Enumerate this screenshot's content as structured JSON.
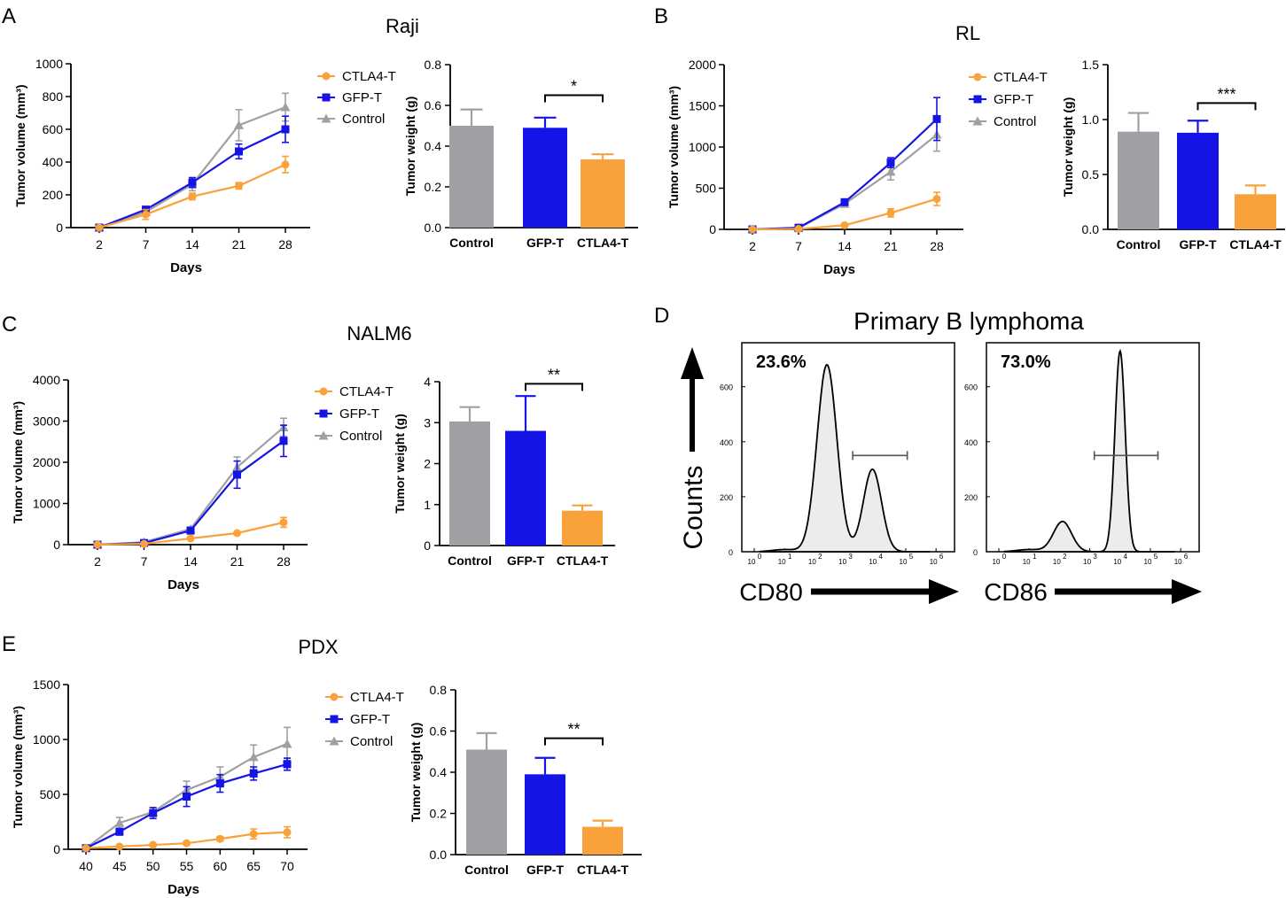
{
  "colors": {
    "ctla4": "#f9a13b",
    "gfp": "#1414e6",
    "control": "#a0a0a4",
    "hist_fill": "#ececec"
  },
  "panels": {
    "a": "A",
    "b": "B",
    "c": "C",
    "d": "D",
    "e": "E"
  },
  "chart_data": [
    {
      "id": "A-line",
      "type": "line",
      "title": "Raji",
      "xlabel": "Days",
      "ylabel": "Tumor volume (mm³)",
      "categories": [
        "2",
        "7",
        "14",
        "21",
        "28"
      ],
      "ylim": [
        0,
        1000
      ],
      "yticks": [
        0,
        200,
        400,
        600,
        800,
        1000
      ],
      "series": [
        {
          "name": "CTLA4-T",
          "color": "ctla4",
          "marker": "circle",
          "values": [
            0,
            80,
            190,
            255,
            385
          ],
          "errors": [
            0,
            30,
            20,
            20,
            50
          ]
        },
        {
          "name": "GFP-T",
          "color": "gfp",
          "marker": "square",
          "values": [
            0,
            110,
            275,
            465,
            600
          ],
          "errors": [
            0,
            10,
            30,
            45,
            80
          ]
        },
        {
          "name": "Control",
          "color": "control",
          "marker": "triangle",
          "values": [
            0,
            95,
            265,
            625,
            735
          ],
          "errors": [
            0,
            20,
            40,
            95,
            85
          ]
        }
      ]
    },
    {
      "id": "A-bar",
      "type": "bar",
      "ylabel": "Tumor weight (g)",
      "categories": [
        "Control",
        "GFP-T",
        "CTLA4-T"
      ],
      "values": [
        0.5,
        0.49,
        0.335
      ],
      "errors": [
        0.08,
        0.05,
        0.025
      ],
      "colors": [
        "control",
        "gfp",
        "ctla4"
      ],
      "ylim": [
        0,
        0.8
      ],
      "yticks": [
        "0.0",
        "0.2",
        "0.4",
        "0.6",
        "0.8"
      ],
      "sig": {
        "label": "*",
        "from": 1,
        "to": 2,
        "y": 0.65
      }
    },
    {
      "id": "B-line",
      "type": "line",
      "title": "RL",
      "xlabel": "Days",
      "ylabel": "Tumor volume (mm³)",
      "categories": [
        "2",
        "7",
        "14",
        "21",
        "28"
      ],
      "ylim": [
        0,
        2000
      ],
      "yticks": [
        0,
        500,
        1000,
        1500,
        2000
      ],
      "series": [
        {
          "name": "CTLA4-T",
          "color": "ctla4",
          "marker": "circle",
          "values": [
            0,
            5,
            50,
            200,
            370
          ],
          "errors": [
            0,
            5,
            10,
            50,
            80
          ]
        },
        {
          "name": "GFP-T",
          "color": "gfp",
          "marker": "square",
          "values": [
            0,
            20,
            330,
            810,
            1340
          ],
          "errors": [
            0,
            10,
            30,
            60,
            260
          ]
        },
        {
          "name": "Control",
          "color": "control",
          "marker": "triangle",
          "values": [
            0,
            15,
            310,
            700,
            1150
          ],
          "errors": [
            0,
            10,
            40,
            100,
            200
          ]
        }
      ]
    },
    {
      "id": "B-bar",
      "type": "bar",
      "ylabel": "Tumor weight (g)",
      "categories": [
        "Control",
        "GFP-T",
        "CTLA4-T"
      ],
      "values": [
        0.89,
        0.88,
        0.32
      ],
      "errors": [
        0.17,
        0.11,
        0.08
      ],
      "colors": [
        "control",
        "gfp",
        "ctla4"
      ],
      "ylim": [
        0,
        1.5
      ],
      "yticks": [
        "0.0",
        "0.5",
        "1.0",
        "1.5"
      ],
      "sig": {
        "label": "***",
        "from": 1,
        "to": 2,
        "y": 1.15
      }
    },
    {
      "id": "C-line",
      "type": "line",
      "title": "NALM6",
      "xlabel": "Days",
      "ylabel": "Tumor volume (mm³)",
      "categories": [
        "2",
        "7",
        "14",
        "21",
        "28"
      ],
      "ylim": [
        0,
        4000
      ],
      "yticks": [
        0,
        1000,
        2000,
        3000,
        4000
      ],
      "series": [
        {
          "name": "CTLA4-T",
          "color": "ctla4",
          "marker": "circle",
          "values": [
            0,
            20,
            150,
            280,
            540
          ],
          "errors": [
            0,
            10,
            20,
            30,
            120
          ]
        },
        {
          "name": "GFP-T",
          "color": "gfp",
          "marker": "square",
          "values": [
            0,
            40,
            340,
            1700,
            2520
          ],
          "errors": [
            0,
            20,
            40,
            330,
            380
          ]
        },
        {
          "name": "Control",
          "color": "control",
          "marker": "triangle",
          "values": [
            0,
            60,
            380,
            1880,
            2850
          ],
          "errors": [
            0,
            20,
            50,
            250,
            220
          ]
        }
      ]
    },
    {
      "id": "C-bar",
      "type": "bar",
      "ylabel": "Tumor weight (g)",
      "categories": [
        "Control",
        "GFP-T",
        "CTLA4-T"
      ],
      "values": [
        3.03,
        2.8,
        0.85
      ],
      "errors": [
        0.35,
        0.85,
        0.13
      ],
      "colors": [
        "control",
        "gfp",
        "ctla4"
      ],
      "ylim": [
        0,
        4
      ],
      "yticks": [
        "0",
        "1",
        "2",
        "3",
        "4"
      ],
      "sig": {
        "label": "**",
        "from": 1,
        "to": 2,
        "y": 3.95
      }
    },
    {
      "id": "E-line",
      "type": "line",
      "title": "PDX",
      "xlabel": "Days",
      "ylabel": "Tumor volume (mm³)",
      "categories": [
        "40",
        "45",
        "50",
        "55",
        "60",
        "65",
        "70"
      ],
      "ylim": [
        0,
        1500
      ],
      "yticks": [
        0,
        500,
        1000,
        1500
      ],
      "series": [
        {
          "name": "CTLA4-T",
          "color": "ctla4",
          "marker": "circle",
          "values": [
            10,
            25,
            40,
            55,
            95,
            140,
            155
          ],
          "errors": [
            5,
            10,
            15,
            15,
            20,
            45,
            50
          ]
        },
        {
          "name": "GFP-T",
          "color": "gfp",
          "marker": "square",
          "values": [
            10,
            160,
            330,
            480,
            600,
            690,
            775
          ],
          "errors": [
            5,
            30,
            50,
            90,
            80,
            60,
            55
          ]
        },
        {
          "name": "Control",
          "color": "control",
          "marker": "triangle",
          "values": [
            10,
            240,
            340,
            540,
            660,
            840,
            960
          ],
          "errors": [
            5,
            50,
            40,
            80,
            90,
            110,
            150
          ]
        }
      ]
    },
    {
      "id": "E-bar",
      "type": "bar",
      "ylabel": "Tumor weight (g)",
      "categories": [
        "Control",
        "GFP-T",
        "CTLA4-T"
      ],
      "values": [
        0.51,
        0.39,
        0.135
      ],
      "errors": [
        0.08,
        0.08,
        0.03
      ],
      "colors": [
        "control",
        "gfp",
        "ctla4"
      ],
      "ylim": [
        0,
        0.8
      ],
      "yticks": [
        "0.0",
        "0.2",
        "0.4",
        "0.6",
        "0.8"
      ],
      "sig": {
        "label": "**",
        "from": 1,
        "to": 2,
        "y": 0.565
      }
    }
  ],
  "flow": {
    "title": "Primary B lymphoma",
    "ylabel": "Counts",
    "yticks": [
      "0",
      "200",
      "400",
      "600"
    ],
    "xticks": [
      "0",
      "1",
      "2",
      "3",
      "4",
      "5",
      "6"
    ],
    "tick_base": "10",
    "histograms": [
      {
        "id": "cd80",
        "marker": "CD80",
        "percent": "23.6%",
        "peaks": [
          {
            "log": 2.4,
            "height": 680
          },
          {
            "log": 3.9,
            "height": 300
          }
        ]
      },
      {
        "id": "cd86",
        "marker": "CD86",
        "percent": "73.0%",
        "peaks": [
          {
            "log": 2.1,
            "height": 110
          },
          {
            "log": 4.0,
            "height": 730
          }
        ]
      }
    ]
  }
}
